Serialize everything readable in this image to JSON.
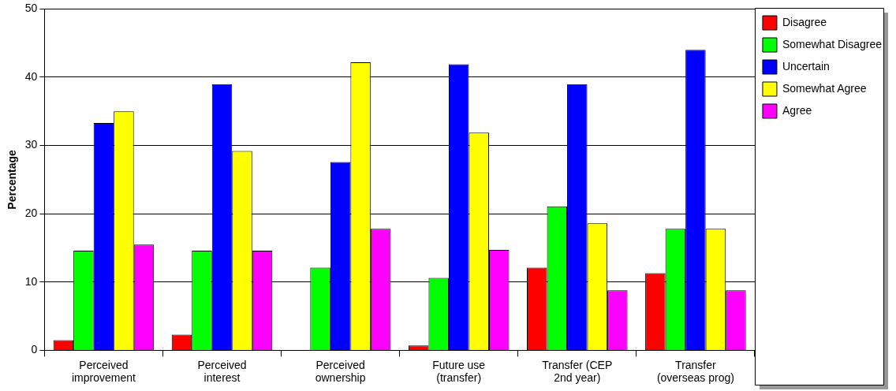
{
  "chart_data": {
    "type": "bar",
    "ylabel": "Percentage",
    "categories": [
      "Perceived improvement",
      "Perceived interest",
      "Perceived ownership",
      "Future use (transfer)",
      "Transfer (CEP 2nd year)",
      "Transfer (overseas prog)"
    ],
    "series": [
      {
        "name": "Disagree",
        "color": "#ff0000",
        "values": [
          1.5,
          2.3,
          0,
          0.7,
          12.1,
          11.3
        ]
      },
      {
        "name": "Somewhat Disagree",
        "color": "#00ff00",
        "values": [
          14.6,
          14.6,
          12.1,
          10.6,
          21.1,
          17.8
        ]
      },
      {
        "name": "Uncertain",
        "color": "#0000ff",
        "values": [
          33.3,
          39.0,
          27.6,
          41.9,
          39.0,
          44.0
        ]
      },
      {
        "name": "Somewhat Agree",
        "color": "#ffff00",
        "values": [
          35.0,
          29.2,
          42.2,
          31.9,
          18.6,
          17.8
        ]
      },
      {
        "name": "Agree",
        "color": "#ff00ff",
        "values": [
          15.5,
          14.6,
          17.8,
          14.7,
          8.8,
          8.8
        ]
      }
    ],
    "ylim": [
      0,
      50
    ],
    "yticks": [
      0,
      10,
      20,
      30,
      40,
      50
    ],
    "grid": "y",
    "legend": "top right"
  }
}
